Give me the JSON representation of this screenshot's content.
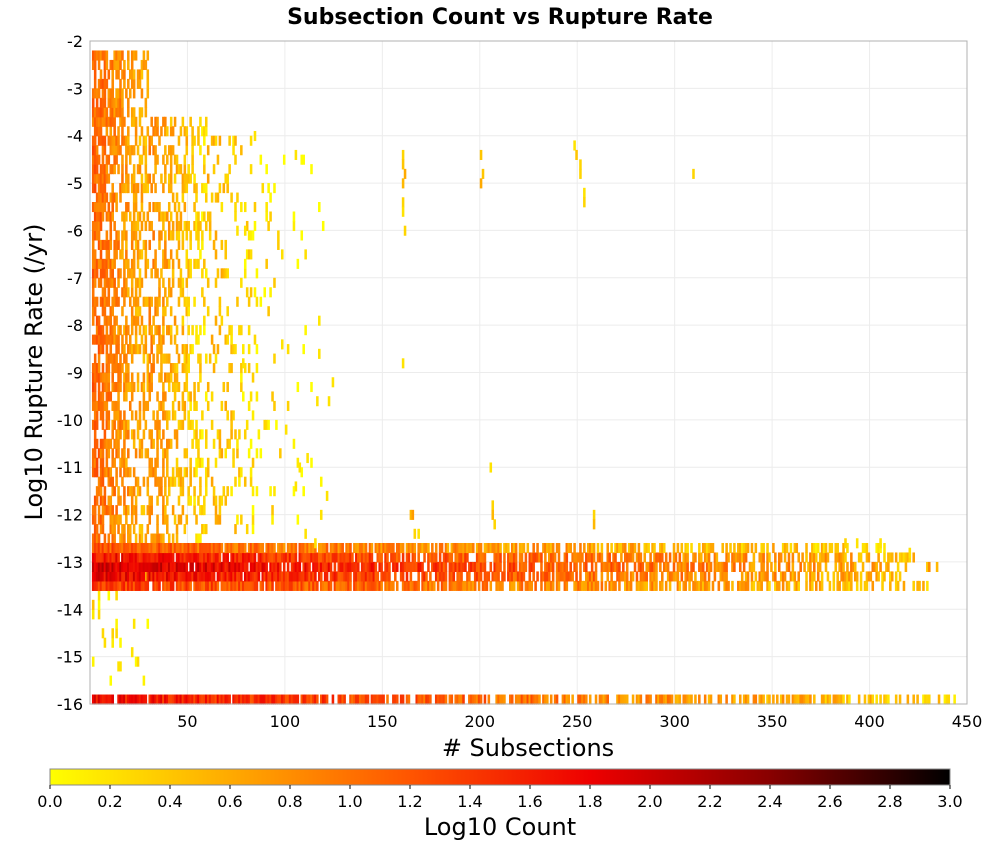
{
  "chart_data": {
    "type": "heatmap",
    "title": "Subsection Count vs Rupture Rate",
    "xlabel": "# Subsections",
    "ylabel": "Log10 Rupture Rate (/yr)",
    "xlim": [
      0,
      450
    ],
    "ylim": [
      -16,
      -2
    ],
    "x_ticks": [
      "50",
      "100",
      "150",
      "200",
      "250",
      "300",
      "350",
      "400",
      "450"
    ],
    "x_tick_values": [
      50,
      100,
      150,
      200,
      250,
      300,
      350,
      400,
      450
    ],
    "y_ticks": [
      "-2",
      "-3",
      "-4",
      "-5",
      "-6",
      "-7",
      "-8",
      "-9",
      "-10",
      "-11",
      "-12",
      "-13",
      "-14",
      "-15",
      "-16"
    ],
    "y_tick_values": [
      -2,
      -3,
      -4,
      -5,
      -6,
      -7,
      -8,
      -9,
      -10,
      -11,
      -12,
      -13,
      -14,
      -15,
      -16
    ],
    "grid": true,
    "x_bin_width": 1,
    "y_bin_width": 0.2,
    "colorbar": {
      "label": "Log10 Count",
      "min": 0.0,
      "max": 3.0,
      "ticks": [
        "0.0",
        "0.2",
        "0.4",
        "0.6",
        "0.8",
        "1.0",
        "1.2",
        "1.4",
        "1.6",
        "1.8",
        "2.0",
        "2.2",
        "2.4",
        "2.6",
        "2.8",
        "3.0"
      ],
      "tick_values": [
        0.0,
        0.2,
        0.4,
        0.6,
        0.8,
        1.0,
        1.2,
        1.4,
        1.6,
        1.8,
        2.0,
        2.2,
        2.4,
        2.6,
        2.8,
        3.0
      ],
      "colors": [
        "#ffff00",
        "#ffaa00",
        "#ff5500",
        "#ee0000",
        "#880000",
        "#000000"
      ]
    },
    "bands": [
      {
        "x": [
          1,
          444
        ],
        "y": [
          -16.0,
          -15.8
        ],
        "v_start": 1.7,
        "v_end": 0.3
      },
      {
        "x": [
          1,
          430
        ],
        "y": [
          -13.6,
          -13.4
        ],
        "v_start": 1.4,
        "v_end": 0.4
      },
      {
        "x": [
          1,
          420
        ],
        "y": [
          -13.4,
          -13.2
        ],
        "v_start": 1.8,
        "v_end": 0.5
      },
      {
        "x": [
          1,
          435
        ],
        "y": [
          -13.2,
          -13.0
        ],
        "v_start": 2.0,
        "v_end": 0.5
      },
      {
        "x": [
          1,
          425
        ],
        "y": [
          -13.0,
          -12.8
        ],
        "v_start": 1.7,
        "v_end": 0.5
      },
      {
        "x": [
          1,
          410
        ],
        "y": [
          -12.8,
          -12.6
        ],
        "v_start": 1.2,
        "v_end": 0.3
      }
    ],
    "scatter_regions": [
      {
        "x": [
          1,
          30
        ],
        "y": [
          -13.6,
          -2.2
        ],
        "density": 0.75,
        "v_start": 1.1,
        "v_end": 0.5
      },
      {
        "x": [
          30,
          60
        ],
        "y": [
          -12.6,
          -3.6
        ],
        "density": 0.45,
        "v_start": 0.8,
        "v_end": 0.2
      },
      {
        "x": [
          60,
          90
        ],
        "y": [
          -12.4,
          -4.0
        ],
        "density": 0.18,
        "v_start": 0.5,
        "v_end": 0.1
      },
      {
        "x": [
          90,
          120
        ],
        "y": [
          -12.2,
          -4.4
        ],
        "density": 0.05,
        "v_start": 0.2,
        "v_end": 0.0
      },
      {
        "x": [
          1,
          30
        ],
        "y": [
          -15.6,
          -13.6
        ],
        "density": 0.12,
        "v_start": 0.2,
        "v_end": 0.0
      }
    ],
    "cells": [
      {
        "x": 160,
        "y": -4.5,
        "v": 0.3
      },
      {
        "x": 160,
        "y": -4.7,
        "v": 0.4
      },
      {
        "x": 161,
        "y": -4.9,
        "v": 0.6
      },
      {
        "x": 160,
        "y": -5.1,
        "v": 0.5
      },
      {
        "x": 160,
        "y": -5.5,
        "v": 0.3
      },
      {
        "x": 160,
        "y": -5.7,
        "v": 0.2
      },
      {
        "x": 161,
        "y": -6.1,
        "v": 0.3
      },
      {
        "x": 160,
        "y": -8.9,
        "v": 0.2
      },
      {
        "x": 200,
        "y": -4.5,
        "v": 0.4
      },
      {
        "x": 201,
        "y": -4.9,
        "v": 0.4
      },
      {
        "x": 200,
        "y": -5.1,
        "v": 0.6
      },
      {
        "x": 248,
        "y": -4.3,
        "v": 0.2
      },
      {
        "x": 249,
        "y": -4.5,
        "v": 0.4
      },
      {
        "x": 251,
        "y": -4.7,
        "v": 0.3
      },
      {
        "x": 251,
        "y": -4.9,
        "v": 0.3
      },
      {
        "x": 253,
        "y": -5.3,
        "v": 0.2
      },
      {
        "x": 253,
        "y": -5.5,
        "v": 0.3
      },
      {
        "x": 105,
        "y": -4.5,
        "v": 0.2
      },
      {
        "x": 309,
        "y": -4.9,
        "v": 0.3
      },
      {
        "x": 164,
        "y": -12.1,
        "v": 0.5
      },
      {
        "x": 165,
        "y": -12.1,
        "v": 0.7
      },
      {
        "x": 205,
        "y": -11.1,
        "v": 0.2
      },
      {
        "x": 206,
        "y": -11.9,
        "v": 0.3
      },
      {
        "x": 206,
        "y": -12.1,
        "v": 0.5
      },
      {
        "x": 207,
        "y": -12.3,
        "v": 0.3
      },
      {
        "x": 258,
        "y": -12.1,
        "v": 0.3
      },
      {
        "x": 258,
        "y": -12.3,
        "v": 0.5
      },
      {
        "x": 166,
        "y": -12.5,
        "v": 0.3
      },
      {
        "x": 168,
        "y": -12.5,
        "v": 0.2
      },
      {
        "x": 75,
        "y": -6.1,
        "v": 0.2
      },
      {
        "x": 79,
        "y": -6.1,
        "v": 0.2
      },
      {
        "x": 84,
        "y": -4.1,
        "v": 0.2
      },
      {
        "x": 78,
        "y": -8.9,
        "v": 0.2
      },
      {
        "x": 98,
        "y": -8.5,
        "v": 0.2
      },
      {
        "x": 117,
        "y": -8.7,
        "v": 0.2
      },
      {
        "x": 116,
        "y": -9.7,
        "v": 0.2
      },
      {
        "x": 122,
        "y": -9.7,
        "v": 0.2
      },
      {
        "x": 124,
        "y": -9.3,
        "v": 0.2
      },
      {
        "x": 111,
        "y": -10.9,
        "v": 0.2
      },
      {
        "x": 121,
        "y": -11.7,
        "v": 0.2
      },
      {
        "x": 118,
        "y": -12.1,
        "v": 0.2
      },
      {
        "x": 107,
        "y": -11.1,
        "v": 0.2
      },
      {
        "x": 105,
        "y": -11.5,
        "v": 0.2
      },
      {
        "x": 100,
        "y": -10.3,
        "v": 0.2
      },
      {
        "x": 110,
        "y": -12.5,
        "v": 0.2
      },
      {
        "x": 115,
        "y": -12.7,
        "v": 0.2
      },
      {
        "x": 387,
        "y": -12.7,
        "v": 0.3
      },
      {
        "x": 393,
        "y": -12.7,
        "v": 0.2
      },
      {
        "x": 405,
        "y": -12.7,
        "v": 0.2
      },
      {
        "x": 420,
        "y": -12.9,
        "v": 0.2
      },
      {
        "x": 14,
        "y": -15.3,
        "v": 0.2
      },
      {
        "x": 15,
        "y": -15.3,
        "v": 0.2
      }
    ]
  }
}
